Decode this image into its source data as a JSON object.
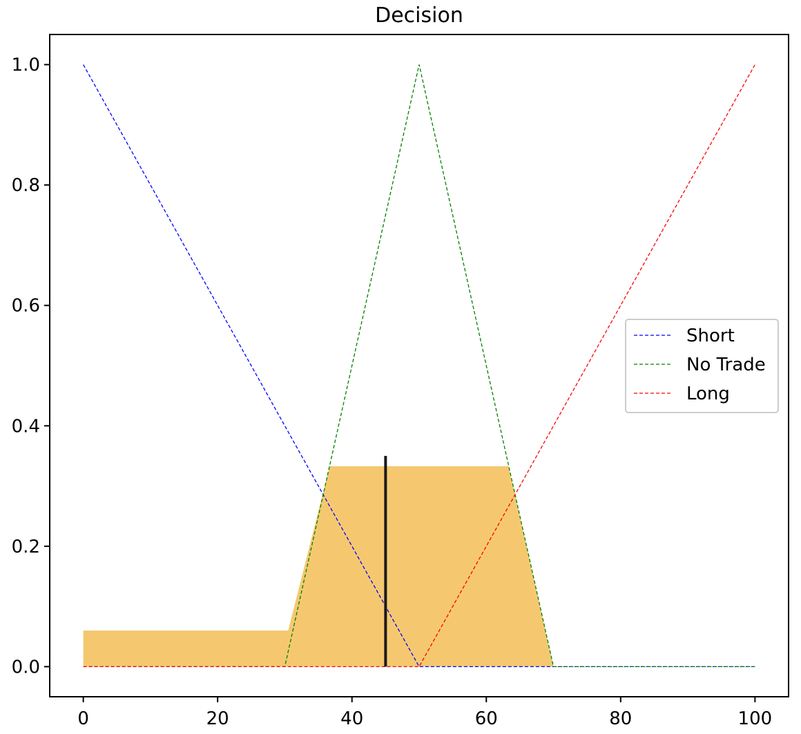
{
  "chart_data": {
    "type": "line",
    "title": "Decision",
    "xlabel": "",
    "ylabel": "",
    "xlim": [
      -5,
      105
    ],
    "ylim": [
      -0.05,
      1.05
    ],
    "x_ticks": [
      0,
      20,
      40,
      60,
      80,
      100
    ],
    "x_tick_labels": [
      "0",
      "20",
      "40",
      "60",
      "80",
      "100"
    ],
    "y_ticks": [
      0.0,
      0.2,
      0.4,
      0.6,
      0.8,
      1.0
    ],
    "y_tick_labels": [
      "0.0",
      "0.2",
      "0.4",
      "0.6",
      "0.8",
      "1.0"
    ],
    "grid": false,
    "legend_position": "center-right",
    "series": [
      {
        "name": "Short",
        "color": "#0000ff",
        "style": "dashed",
        "points": [
          [
            0,
            1.0
          ],
          [
            50,
            0.0
          ],
          [
            100,
            0.0
          ]
        ]
      },
      {
        "name": "No Trade",
        "color": "#008000",
        "style": "dashed",
        "points": [
          [
            0,
            0.0
          ],
          [
            30,
            0.0
          ],
          [
            50,
            1.0
          ],
          [
            70,
            0.0
          ],
          [
            100,
            0.0
          ]
        ]
      },
      {
        "name": "Long",
        "color": "#ff0000",
        "style": "dashed",
        "points": [
          [
            0,
            0.0
          ],
          [
            50,
            0.0
          ],
          [
            100,
            1.0
          ]
        ]
      }
    ],
    "aggregated_area": {
      "color": "#f5c870",
      "points": [
        [
          0,
          0.06
        ],
        [
          30.5,
          0.06
        ],
        [
          36.7,
          0.333
        ],
        [
          63.3,
          0.333
        ],
        [
          70,
          0.0
        ],
        [
          100,
          0.0
        ]
      ]
    },
    "defuzzified_line": {
      "color": "#1a1a1a",
      "x": 45,
      "y_top": 0.35
    }
  }
}
